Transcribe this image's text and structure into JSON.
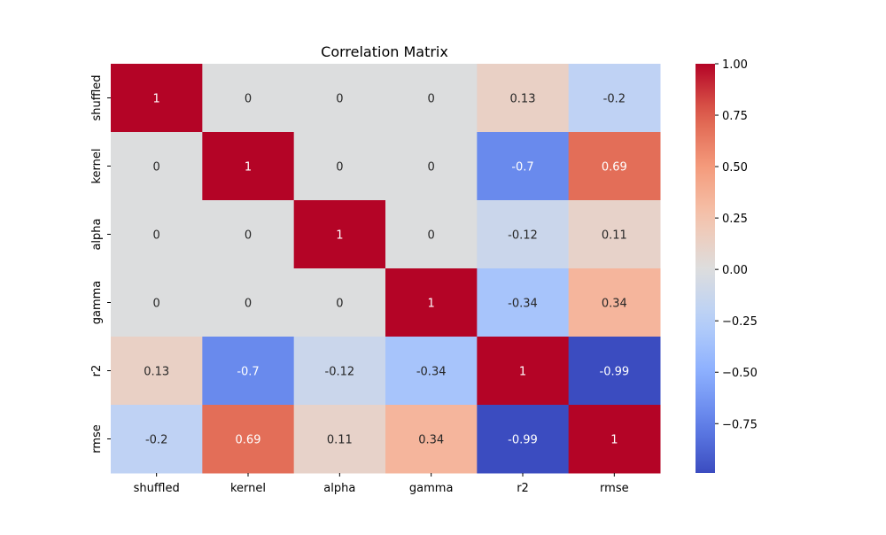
{
  "chart_data": {
    "type": "heatmap",
    "title": "Correlation Matrix",
    "xlabel": "",
    "ylabel": "",
    "x_categories": [
      "shuffled",
      "kernel",
      "alpha",
      "gamma",
      "r2",
      "rmse"
    ],
    "y_categories": [
      "shuffled",
      "kernel",
      "alpha",
      "gamma",
      "r2",
      "rmse"
    ],
    "values": [
      [
        1,
        0,
        0,
        0,
        0.13,
        -0.2
      ],
      [
        0,
        1,
        0,
        0,
        -0.7,
        0.69
      ],
      [
        0,
        0,
        1,
        0,
        -0.12,
        0.11
      ],
      [
        0,
        0,
        0,
        1,
        -0.34,
        0.34
      ],
      [
        0.13,
        -0.7,
        -0.12,
        -0.34,
        1,
        -0.99
      ],
      [
        -0.2,
        0.69,
        0.11,
        0.34,
        -0.99,
        1
      ]
    ],
    "annotations": [
      [
        "1",
        "0",
        "0",
        "0",
        "0.13",
        "-0.2"
      ],
      [
        "0",
        "1",
        "0",
        "0",
        "-0.7",
        "0.69"
      ],
      [
        "0",
        "0",
        "1",
        "0",
        "-0.12",
        "0.11"
      ],
      [
        "0",
        "0",
        "0",
        "1",
        "-0.34",
        "0.34"
      ],
      [
        "0.13",
        "-0.7",
        "-0.12",
        "-0.34",
        "1",
        "-0.99"
      ],
      [
        "-0.2",
        "0.69",
        "0.11",
        "0.34",
        "-0.99",
        "1"
      ]
    ],
    "colormap": "coolwarm",
    "color_range": [
      -0.99,
      1
    ],
    "colorbar": {
      "ticks": [
        1.0,
        0.75,
        0.5,
        0.25,
        0.0,
        -0.25,
        -0.5,
        -0.75
      ],
      "tick_labels": [
        "1.00",
        "0.75",
        "0.50",
        "0.25",
        "0.00",
        "−0.25",
        "−0.50",
        "−0.75"
      ],
      "placement": "right"
    }
  }
}
